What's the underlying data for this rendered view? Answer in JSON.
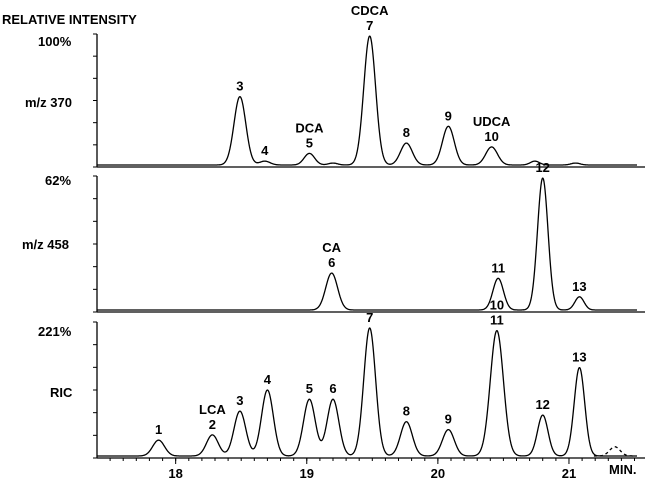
{
  "chart_data": {
    "type": "line",
    "header": "RELATIVE INTENSITY",
    "x_unit": "MIN.",
    "xlim": [
      17.4,
      21.58
    ],
    "x_ticks": [
      "18",
      "19",
      "20",
      "21"
    ],
    "panels": [
      {
        "scale_label": "100%",
        "channel_label": "m/z 370",
        "peaks": [
          {
            "x": 18.49,
            "y": 0.53,
            "w": 0.045,
            "labels": [
              "3"
            ]
          },
          {
            "x": 18.68,
            "y": 0.03,
            "w": 0.04,
            "labels": [
              "4"
            ]
          },
          {
            "x": 19.02,
            "y": 0.09,
            "w": 0.04,
            "labels": [
              "DCA",
              "5"
            ]
          },
          {
            "x": 19.2,
            "y": 0.015,
            "w": 0.035,
            "labels": []
          },
          {
            "x": 19.48,
            "y": 1.0,
            "w": 0.045,
            "labels": [
              "CDCA",
              "7"
            ]
          },
          {
            "x": 19.76,
            "y": 0.17,
            "w": 0.045,
            "labels": [
              "8"
            ]
          },
          {
            "x": 20.08,
            "y": 0.3,
            "w": 0.045,
            "labels": [
              "9"
            ]
          },
          {
            "x": 20.41,
            "y": 0.14,
            "w": 0.045,
            "labels": [
              "UDCA",
              "10"
            ]
          },
          {
            "x": 20.74,
            "y": 0.03,
            "w": 0.035,
            "labels": []
          },
          {
            "x": 21.05,
            "y": 0.015,
            "w": 0.035,
            "labels": []
          }
        ]
      },
      {
        "scale_label": "62%",
        "channel_label": "m/z 458",
        "peaks": [
          {
            "x": 19.19,
            "y": 0.28,
            "w": 0.045,
            "labels": [
              "CA",
              "6"
            ]
          },
          {
            "x": 20.46,
            "y": 0.24,
            "w": 0.04,
            "labels": [
              "11"
            ]
          },
          {
            "x": 20.8,
            "y": 1.0,
            "w": 0.04,
            "labels": [
              "12"
            ]
          },
          {
            "x": 21.08,
            "y": 0.1,
            "w": 0.035,
            "labels": [
              "13"
            ]
          }
        ]
      },
      {
        "scale_label": "221%",
        "channel_label": "RIC",
        "peaks": [
          {
            "x": 17.87,
            "y": 0.12,
            "w": 0.045,
            "labels": [
              "1"
            ]
          },
          {
            "x": 18.28,
            "y": 0.16,
            "w": 0.045,
            "labels": [
              "LCA",
              "2"
            ]
          },
          {
            "x": 18.49,
            "y": 0.34,
            "w": 0.045,
            "labels": [
              "3"
            ]
          },
          {
            "x": 18.7,
            "y": 0.5,
            "w": 0.045,
            "labels": [
              "4"
            ]
          },
          {
            "x": 19.02,
            "y": 0.43,
            "w": 0.045,
            "labels": [
              "5"
            ]
          },
          {
            "x": 19.2,
            "y": 0.43,
            "w": 0.045,
            "labels": [
              "6"
            ]
          },
          {
            "x": 19.48,
            "y": 0.97,
            "w": 0.045,
            "labels": [
              "7"
            ]
          },
          {
            "x": 19.76,
            "y": 0.26,
            "w": 0.045,
            "labels": [
              "8"
            ]
          },
          {
            "x": 20.08,
            "y": 0.2,
            "w": 0.045,
            "labels": [
              "9"
            ]
          },
          {
            "x": 20.45,
            "y": 0.95,
            "w": 0.05,
            "labels": [
              "10",
              "11"
            ]
          },
          {
            "x": 20.8,
            "y": 0.31,
            "w": 0.04,
            "labels": [
              "12"
            ]
          },
          {
            "x": 21.08,
            "y": 0.67,
            "w": 0.04,
            "labels": [
              "13"
            ]
          },
          {
            "x": 21.35,
            "y": 0.07,
            "w": 0.04,
            "labels": [],
            "dashed": true
          }
        ]
      }
    ]
  }
}
